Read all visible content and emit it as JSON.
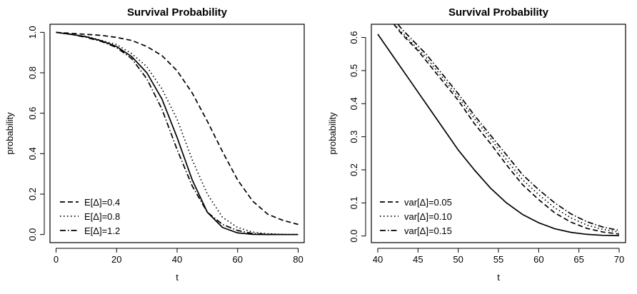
{
  "chart_data": [
    {
      "type": "line",
      "title": "Survival Probability",
      "xlabel": "t",
      "ylabel": "probability",
      "xlim": [
        -2,
        82
      ],
      "ylim": [
        -0.04,
        1.04
      ],
      "xticks": [
        0,
        20,
        40,
        60,
        80
      ],
      "yticks": [
        0.0,
        0.2,
        0.4,
        0.6,
        0.8,
        1.0
      ],
      "xtick_labels": [
        "0",
        "20",
        "40",
        "60",
        "80"
      ],
      "ytick_labels": [
        "0.0",
        "0.2",
        "0.4",
        "0.6",
        "0.8",
        "1.0"
      ],
      "legend_position": "bottom-left",
      "series": [
        {
          "style": "dashed",
          "name": "E[Δ]=0.4",
          "color": "#000000",
          "x": [
            0,
            5,
            10,
            15,
            20,
            25,
            30,
            35,
            40,
            45,
            50,
            55,
            60,
            65,
            70,
            75,
            80
          ],
          "y": [
            1.0,
            0.995,
            0.99,
            0.985,
            0.975,
            0.96,
            0.93,
            0.885,
            0.81,
            0.7,
            0.56,
            0.41,
            0.27,
            0.165,
            0.1,
            0.07,
            0.05
          ]
        },
        {
          "style": "dotted",
          "name": "E[Δ]=0.8",
          "color": "#000000",
          "x": [
            0,
            5,
            10,
            15,
            20,
            25,
            30,
            35,
            40,
            45,
            50,
            55,
            60,
            65,
            70,
            75,
            80
          ],
          "y": [
            1.0,
            0.99,
            0.98,
            0.96,
            0.94,
            0.895,
            0.83,
            0.72,
            0.57,
            0.37,
            0.2,
            0.085,
            0.035,
            0.012,
            0.004,
            0.001,
            0.0
          ]
        },
        {
          "style": "dashdot",
          "name": "E[Δ]=1.2",
          "color": "#000000",
          "x": [
            0,
            5,
            10,
            15,
            20,
            25,
            30,
            35,
            40,
            45,
            50,
            55,
            60,
            65,
            70,
            75,
            80
          ],
          "y": [
            1.0,
            0.99,
            0.975,
            0.955,
            0.925,
            0.87,
            0.77,
            0.62,
            0.42,
            0.24,
            0.11,
            0.05,
            0.02,
            0.005,
            0.001,
            0.0,
            0.0
          ]
        },
        {
          "style": "solid",
          "name": "",
          "color": "#000000",
          "x": [
            0,
            5,
            10,
            15,
            20,
            25,
            30,
            35,
            40,
            45,
            50,
            55,
            60,
            65,
            70,
            75,
            80
          ],
          "y": [
            1.0,
            0.99,
            0.978,
            0.958,
            0.93,
            0.88,
            0.8,
            0.67,
            0.48,
            0.27,
            0.11,
            0.035,
            0.008,
            0.001,
            0.0,
            0.0,
            0.0
          ]
        }
      ]
    },
    {
      "type": "line",
      "title": "Survival Probability",
      "xlabel": "t",
      "ylabel": "probability",
      "xlim": [
        39.2,
        70.8
      ],
      "ylim": [
        -0.02,
        0.64
      ],
      "xticks": [
        40,
        45,
        50,
        55,
        60,
        65,
        70
      ],
      "yticks": [
        0.0,
        0.1,
        0.2,
        0.3,
        0.4,
        0.5,
        0.6
      ],
      "xtick_labels": [
        "40",
        "45",
        "50",
        "55",
        "60",
        "65",
        "70"
      ],
      "ytick_labels": [
        "0.0",
        "0.1",
        "0.2",
        "0.3",
        "0.4",
        "0.5",
        "0.6"
      ],
      "legend_position": "bottom-left",
      "series": [
        {
          "style": "dashed",
          "name": "var[Δ]=0.05",
          "color": "#000000",
          "x": [
            42,
            43,
            44,
            45,
            46,
            47,
            48,
            50,
            52,
            54,
            56,
            58,
            60,
            62,
            64,
            66,
            68,
            70
          ],
          "y": [
            0.64,
            0.61,
            0.585,
            0.56,
            0.53,
            0.5,
            0.47,
            0.41,
            0.34,
            0.28,
            0.215,
            0.155,
            0.11,
            0.07,
            0.042,
            0.023,
            0.012,
            0.006
          ]
        },
        {
          "style": "dotted",
          "name": "var[Δ]=0.10",
          "color": "#000000",
          "x": [
            42,
            43,
            44,
            45,
            46,
            47,
            48,
            50,
            52,
            54,
            56,
            58,
            60,
            62,
            64,
            66,
            68,
            70
          ],
          "y": [
            0.64,
            0.615,
            0.59,
            0.565,
            0.54,
            0.51,
            0.48,
            0.42,
            0.355,
            0.295,
            0.23,
            0.17,
            0.125,
            0.085,
            0.055,
            0.033,
            0.02,
            0.012
          ]
        },
        {
          "style": "dashdot",
          "name": "var[Δ]=0.15",
          "color": "#000000",
          "x": [
            42.5,
            43,
            44,
            45,
            46,
            47,
            48,
            50,
            52,
            54,
            56,
            58,
            60,
            62,
            64,
            66,
            68,
            70
          ],
          "y": [
            0.64,
            0.625,
            0.6,
            0.575,
            0.55,
            0.52,
            0.49,
            0.43,
            0.365,
            0.305,
            0.245,
            0.185,
            0.14,
            0.1,
            0.067,
            0.043,
            0.027,
            0.017
          ]
        },
        {
          "style": "solid",
          "name": "",
          "color": "#000000",
          "x": [
            40,
            41,
            42,
            43,
            44,
            45,
            46,
            47,
            48,
            50,
            52,
            54,
            56,
            58,
            60,
            62,
            64,
            66,
            68,
            70
          ],
          "y": [
            0.61,
            0.575,
            0.54,
            0.505,
            0.47,
            0.435,
            0.4,
            0.365,
            0.33,
            0.26,
            0.2,
            0.145,
            0.1,
            0.065,
            0.04,
            0.022,
            0.011,
            0.005,
            0.002,
            0.001
          ]
        }
      ]
    }
  ]
}
